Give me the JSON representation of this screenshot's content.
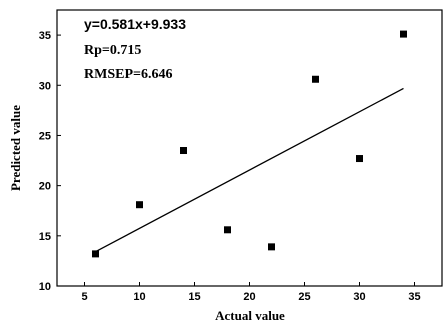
{
  "chart_data": {
    "type": "scatter",
    "xlabel": "Actual value",
    "ylabel": "Predicted value",
    "xlim": [
      2.5,
      37.5
    ],
    "ylim": [
      10,
      37.5
    ],
    "x_ticks": [
      5,
      10,
      15,
      20,
      25,
      30,
      35
    ],
    "y_ticks": [
      10,
      15,
      20,
      25,
      30,
      35
    ],
    "grid": false,
    "points": [
      {
        "x": 6,
        "y": 13.2
      },
      {
        "x": 10,
        "y": 18.1
      },
      {
        "x": 14,
        "y": 23.5
      },
      {
        "x": 18,
        "y": 15.6
      },
      {
        "x": 22,
        "y": 13.9
      },
      {
        "x": 26,
        "y": 30.6
      },
      {
        "x": 30,
        "y": 22.7
      },
      {
        "x": 34,
        "y": 35.1
      }
    ],
    "fit_line": {
      "slope": 0.581,
      "intercept": 9.933,
      "x_range": [
        6,
        34
      ]
    },
    "annotations": {
      "equation": "y=0.581x+9.933",
      "rp": "Rp=0.715",
      "rmsep": "RMSEP=6.646"
    },
    "colors": {
      "marker": "#000000",
      "line": "#000000",
      "axis": "#000000"
    }
  }
}
